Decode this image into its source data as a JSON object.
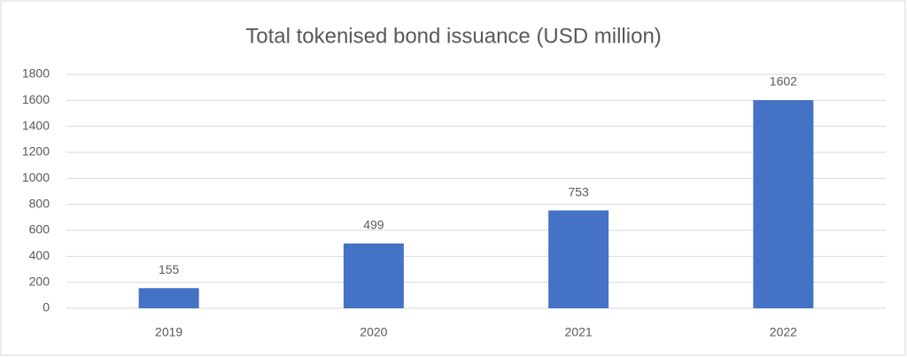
{
  "chart_data": {
    "type": "bar",
    "title": "Total tokenised bond issuance (USD million)",
    "categories": [
      "2019",
      "2020",
      "2021",
      "2022"
    ],
    "values": [
      155,
      499,
      753,
      1602
    ],
    "color": "#4472c4",
    "ylim": [
      0,
      1800
    ],
    "yticks": [
      0,
      200,
      400,
      600,
      800,
      1000,
      1200,
      1400,
      1600,
      1800
    ],
    "grid": true
  }
}
